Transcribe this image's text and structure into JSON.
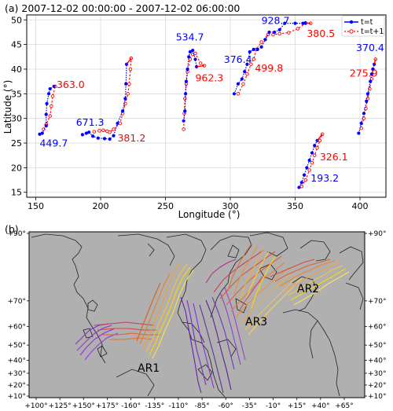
{
  "chart_data": [
    {
      "type": "line",
      "title": "(a) 2007-12-02 00:00:00 - 2007-12-02 06:00:00",
      "xlabel": "Longitude (°)",
      "ylabel": "Latitude (°)",
      "xlim": [
        143,
        420
      ],
      "ylim": [
        14,
        51
      ],
      "xticks": [
        "150",
        "200",
        "250",
        "300",
        "350",
        "400"
      ],
      "yticks": [
        "15",
        "20",
        "25",
        "30",
        "35",
        "40",
        "45",
        "50"
      ],
      "grid": true,
      "legend_position": "top-right",
      "colors": {
        "t": "#0000ff",
        "t1": "#ff0000"
      },
      "series": [
        {
          "name": "t=t",
          "style": "solid-filled-dots"
        },
        {
          "name": "t=t+1",
          "style": "dashed-open-dots"
        }
      ],
      "tracks": [
        {
          "t": [
            [
              153,
              26.8
            ],
            [
              155,
              27
            ],
            [
              158,
              28.5
            ],
            [
              158,
              30.8
            ],
            [
              158.5,
              33
            ],
            [
              160,
              35
            ],
            [
              161,
              36
            ],
            [
              164,
              36.5
            ]
          ],
          "t1": [
            [
              156,
              27.8
            ],
            [
              158,
              28.8
            ],
            [
              161,
              30.5
            ],
            [
              162,
              32.5
            ],
            [
              163,
              34.5
            ],
            [
              165,
              36.5
            ]
          ],
          "labels": [
            {
              "text": "449.7",
              "series": "t",
              "x": 153,
              "y": 24.3
            },
            {
              "text": "363.0",
              "series": "t1",
              "x": 166,
              "y": 36.2
            }
          ]
        },
        {
          "t": [
            [
              186,
              26.7
            ],
            [
              189,
              27
            ],
            [
              191,
              27.2
            ],
            [
              194,
              26.4
            ],
            [
              198,
              26
            ],
            [
              203,
              25.9
            ],
            [
              207,
              25.8
            ],
            [
              210,
              26.5
            ],
            [
              213,
              29
            ],
            [
              217,
              31.5
            ],
            [
              219,
              34
            ],
            [
              219.5,
              37
            ],
            [
              220,
              41
            ]
          ],
          "t1": [
            [
              195,
              27.3
            ],
            [
              199,
              27.5
            ],
            [
              202,
              27.6
            ],
            [
              205,
              27.4
            ],
            [
              207,
              27.2
            ],
            [
              210,
              27.8
            ],
            [
              215,
              29
            ],
            [
              217,
              31
            ],
            [
              219,
              33
            ],
            [
              221,
              35
            ],
            [
              222,
              37
            ],
            [
              223,
              40
            ],
            [
              223.5,
              42.2
            ]
          ],
          "labels": [
            {
              "text": "671.3",
              "series": "t",
              "x": 181,
              "y": 28.5
            },
            {
              "text": "381.2",
              "series": "t1",
              "x": 213,
              "y": 25.3
            }
          ]
        },
        {
          "t": [
            [
              264,
              29.5
            ],
            [
              265,
              31.5
            ],
            [
              265.5,
              35
            ],
            [
              266,
              37.5
            ],
            [
              267,
              40
            ],
            [
              268,
              42.5
            ],
            [
              269,
              43.5
            ],
            [
              271,
              43.8
            ],
            [
              273,
              42
            ],
            [
              274,
              40.5
            ]
          ],
          "t1": [
            [
              264,
              27.8
            ],
            [
              264.5,
              31
            ],
            [
              265,
              34
            ],
            [
              266,
              37
            ],
            [
              267,
              39.5
            ],
            [
              269,
              42
            ],
            [
              271,
              43
            ],
            [
              273,
              43.2
            ],
            [
              277,
              41.2
            ],
            [
              280,
              40.7
            ]
          ],
          "labels": [
            {
              "text": "534.7",
              "series": "t",
              "x": 258,
              "y": 45.8
            },
            {
              "text": "962.3",
              "series": "t1",
              "x": 273,
              "y": 37.5
            }
          ]
        },
        {
          "t": [
            [
              303,
              35
            ],
            [
              306,
              37
            ],
            [
              309,
              38
            ],
            [
              311,
              39.5
            ],
            [
              313,
              41
            ],
            [
              315,
              43.5
            ],
            [
              318,
              44
            ],
            [
              321,
              44
            ],
            [
              324,
              44.5
            ],
            [
              327,
              46
            ],
            [
              330,
              47.5
            ],
            [
              334,
              47.5
            ],
            [
              338,
              48
            ],
            [
              342,
              49.3
            ],
            [
              350,
              49.3
            ],
            [
              356,
              49.3
            ],
            [
              358,
              49.4
            ]
          ],
          "t1": [
            [
              306,
              35
            ],
            [
              310,
              37
            ],
            [
              313,
              39
            ],
            [
              316,
              41
            ],
            [
              318,
              42
            ],
            [
              320,
              44
            ],
            [
              324,
              45.5
            ],
            [
              329,
              47
            ],
            [
              333,
              47
            ],
            [
              338,
              47.2
            ],
            [
              345,
              47.4
            ],
            [
              352,
              48.2
            ],
            [
              358,
              49.3
            ],
            [
              362,
              49.3
            ]
          ],
          "labels": [
            {
              "text": "376.4",
              "series": "t",
              "x": 295,
              "y": 41.3
            },
            {
              "text": "928.7",
              "series": "t",
              "x": 324,
              "y": 49.2
            },
            {
              "text": "499.8",
              "series": "t1",
              "x": 319,
              "y": 39.5
            },
            {
              "text": "380.5",
              "series": "t1",
              "x": 359,
              "y": 46.5
            }
          ]
        },
        {
          "t": [
            [
              353,
              16
            ],
            [
              355,
              17
            ],
            [
              357,
              18.5
            ],
            [
              359,
              20
            ],
            [
              361,
              21.5
            ],
            [
              363,
              23
            ],
            [
              365,
              24.5
            ],
            [
              367,
              25.5
            ]
          ],
          "t1": [
            [
              355,
              16.2
            ],
            [
              358,
              17.5
            ],
            [
              361,
              19.5
            ],
            [
              363,
              21
            ],
            [
              365,
              22.5
            ],
            [
              367,
              24
            ],
            [
              369,
              25.5
            ],
            [
              371,
              26.8
            ]
          ],
          "labels": [
            {
              "text": "193.2",
              "series": "t",
              "x": 362,
              "y": 17.2
            },
            {
              "text": "326.1",
              "series": "t1",
              "x": 369,
              "y": 21.5
            }
          ]
        },
        {
          "t": [
            [
              399,
              27
            ],
            [
              401,
              29
            ],
            [
              403,
              31
            ],
            [
              405,
              33.5
            ],
            [
              406,
              35
            ],
            [
              408,
              37.5
            ],
            [
              409,
              39
            ],
            [
              410,
              40
            ],
            [
              411,
              41
            ]
          ],
          "t1": [
            [
              401,
              28
            ],
            [
              403,
              30
            ],
            [
              404.5,
              32
            ],
            [
              406,
              34
            ],
            [
              407.5,
              36
            ],
            [
              409,
              38
            ],
            [
              410,
              40
            ],
            [
              412,
              42
            ]
          ],
          "labels": [
            {
              "text": "370.4",
              "series": "t",
              "x": 397,
              "y": 43.7
            },
            {
              "text": "275.9",
              "series": "t1",
              "x": 392,
              "y": 38.5
            }
          ]
        }
      ]
    },
    {
      "type": "map",
      "title": "(b)",
      "xticks": [
        "+100°",
        "+125°",
        "+150°",
        "+175°",
        "-160°",
        "-135°",
        "-110°",
        "-85°",
        "-60°",
        "-35°",
        "-10°",
        "+15°",
        "+40°",
        "+65°"
      ],
      "yticks": [
        "+90°",
        "+70°",
        "+60°",
        "+50°",
        "+40°",
        "+30°",
        "+20°",
        "+10°"
      ],
      "annotations": [
        "AR1",
        "AR2",
        "AR3"
      ],
      "colors": {
        "ocean": "#b0b0b0",
        "coast": "#222222"
      }
    }
  ]
}
